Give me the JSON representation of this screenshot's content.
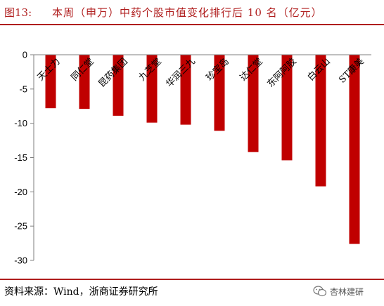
{
  "figure_label": "图13:",
  "title": "本周（申万）中药个股市值变化排行后 10 名（亿元）",
  "source": "资料来源：Wind，浙商证券研究所",
  "watermark": "杏林建研",
  "colors": {
    "bar": "#c00000",
    "accent": "#b01e1e",
    "axis": "#7f7f7f"
  },
  "chart_data": {
    "type": "bar",
    "title": "本周（申万）中药个股市值变化排行后 10 名（亿元）",
    "xlabel": "",
    "ylabel": "",
    "categories": [
      "天士力",
      "同仁堂",
      "昆药集团",
      "九芝堂",
      "华润三九",
      "珍宝岛",
      "达仁堂",
      "东阿阿胶",
      "白云山",
      "ST康美"
    ],
    "values": [
      -7.8,
      -7.9,
      -8.9,
      -9.9,
      -10.2,
      -11.1,
      -14.2,
      -15.4,
      -19.2,
      -27.6
    ],
    "ylim": [
      -30,
      0
    ],
    "yticks": [
      0,
      -5,
      -10,
      -15,
      -20,
      -25,
      -30
    ],
    "grid": false,
    "legend": "none"
  }
}
